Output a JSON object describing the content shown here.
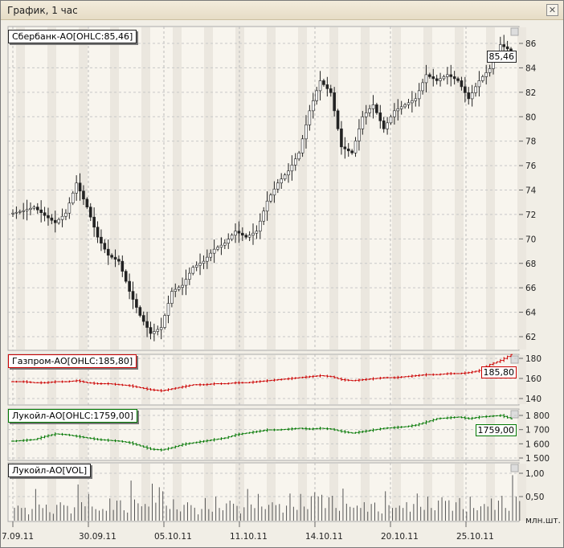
{
  "window": {
    "title": "График, 1 час",
    "close_icon": "close-icon"
  },
  "panels": [
    {
      "legend": "Сбербанк-АО[OHLC:85,46]",
      "last": "85,46",
      "color": "#222222",
      "ticks": [
        "86",
        "84",
        "82",
        "80",
        "78",
        "76",
        "74",
        "72",
        "70",
        "68",
        "66",
        "64",
        "62"
      ]
    },
    {
      "legend": "Газпром-АО[OHLC:185,80]",
      "last": "185,80",
      "color": "#cc0000",
      "ticks": [
        "180",
        "160",
        "140"
      ]
    },
    {
      "legend": "Лукойл-АО[OHLC:1759,00]",
      "last": "1759,00",
      "color": "#007700",
      "ticks": [
        "1 800",
        "1 700",
        "1 600",
        "1 500"
      ]
    },
    {
      "legend": "Лукойл-АО[VOL]",
      "ticks": [
        "1,00",
        "0,50"
      ],
      "unit": "млн.шт."
    }
  ],
  "dates": [
    "7.09.11",
    "30.09.11",
    "05.10.11",
    "11.10.11",
    "14.10.11",
    "20.10.11",
    "25.10.11"
  ],
  "chart_data": {
    "type": "ohlc",
    "x": "hourly bars, 27.09.11 – 27.10.11",
    "series": [
      {
        "name": "Сбербанк-АО",
        "ylim": [
          60.6,
          87.5
        ],
        "values": [
          72.0,
          72.2,
          72.5,
          71.8,
          71.2,
          72.0,
          74.5,
          72.5,
          70.0,
          68.5,
          68.0,
          65.5,
          63.5,
          62.0,
          62.5,
          65.5,
          66.0,
          67.5,
          68.0,
          69.0,
          69.5,
          70.5,
          70.0,
          70.5,
          73.0,
          74.5,
          75.5,
          77.0,
          80.5,
          83.0,
          82.0,
          77.5,
          77.0,
          80.0,
          81.0,
          79.0,
          80.5,
          81.0,
          81.5,
          83.5,
          83.0,
          83.5,
          83.0,
          81.5,
          83.0,
          84.0,
          86.0,
          85.46
        ]
      },
      {
        "name": "Газпром-АО",
        "ylim": [
          136,
          186
        ],
        "values": [
          159,
          159,
          158,
          158,
          159,
          159,
          160,
          158,
          157,
          157,
          156,
          155,
          153,
          151,
          150,
          152,
          154,
          156,
          156,
          157,
          157,
          158,
          158,
          159,
          160,
          161,
          162,
          163,
          164,
          165,
          164,
          161,
          160,
          161,
          162,
          163,
          163,
          164,
          165,
          166,
          166,
          167,
          167,
          168,
          170,
          176,
          180,
          185.8
        ]
      },
      {
        "name": "Лукойл-АО",
        "ylim": [
          1500,
          1820
        ],
        "values": [
          1620,
          1625,
          1630,
          1650,
          1665,
          1660,
          1650,
          1640,
          1630,
          1625,
          1620,
          1610,
          1590,
          1570,
          1565,
          1580,
          1600,
          1610,
          1620,
          1630,
          1640,
          1660,
          1670,
          1680,
          1690,
          1690,
          1695,
          1700,
          1695,
          1700,
          1695,
          1680,
          1670,
          1680,
          1690,
          1700,
          1705,
          1710,
          1720,
          1740,
          1760,
          1765,
          1770,
          1760,
          1770,
          1775,
          1780,
          1759
        ]
      },
      {
        "name": "Лукойл-АО VOL",
        "unit": "млн.шт.",
        "ylim": [
          0,
          1.1
        ],
        "values": [
          0.45,
          0.35,
          0.7,
          0.3,
          0.55,
          0.4,
          0.8,
          0.5,
          0.35,
          0.6,
          0.45,
          0.75,
          0.5,
          1.0,
          0.65,
          0.4,
          0.55,
          0.35,
          0.5,
          0.45,
          0.6,
          0.4,
          0.7,
          0.5,
          0.55,
          0.45,
          0.6,
          0.5,
          0.85,
          0.7,
          0.55,
          0.6,
          0.45,
          0.5,
          0.4,
          0.55,
          0.45,
          0.5,
          0.6,
          0.45,
          0.7,
          0.55,
          0.5,
          0.45,
          0.5,
          0.6,
          0.55,
          0.85
        ]
      }
    ]
  }
}
